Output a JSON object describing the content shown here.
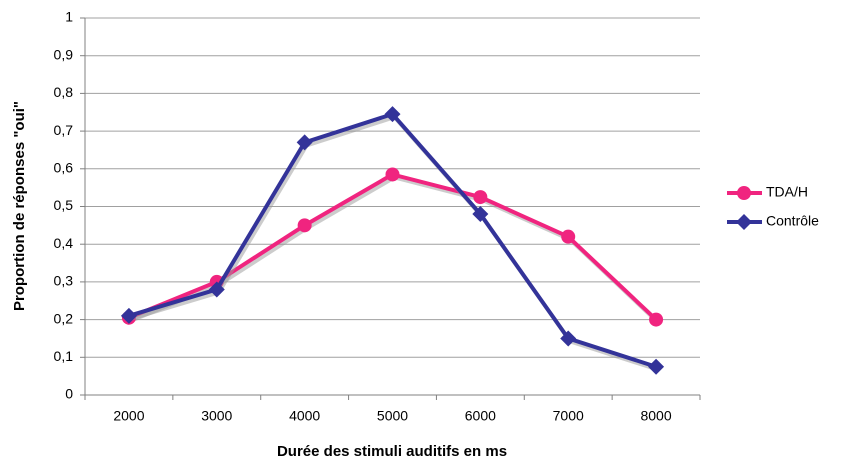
{
  "chart_data": {
    "type": "line",
    "x_label": "Durée des stimuli auditifs en ms",
    "y_label": "Proportion de réponses \"oui\"",
    "categories": [
      "2000",
      "3000",
      "4000",
      "5000",
      "6000",
      "7000",
      "8000"
    ],
    "series": [
      {
        "name": "TDA/H",
        "color": "#f0247f",
        "marker": "circle",
        "values": [
          0.205,
          0.3,
          0.45,
          0.585,
          0.525,
          0.42,
          0.2
        ]
      },
      {
        "name": "Contrôle",
        "color": "#333399",
        "marker": "diamond",
        "values": [
          0.21,
          0.28,
          0.67,
          0.745,
          0.48,
          0.15,
          0.075
        ]
      }
    ],
    "ylim": [
      0,
      1
    ],
    "yticks": [
      0,
      {
        "value": 0.1,
        "label": "0,1"
      },
      {
        "value": 0.2,
        "label": "0,2"
      },
      {
        "value": 0.3,
        "label": "0,3"
      },
      {
        "value": 0.4,
        "label": "0,4"
      },
      {
        "value": 0.5,
        "label": "0,5"
      },
      {
        "value": 0.6,
        "label": "0,6"
      },
      {
        "value": 0.7,
        "label": "0,7"
      },
      {
        "value": 0.8,
        "label": "0,8"
      },
      {
        "value": 0.9,
        "label": "0,9"
      },
      1
    ],
    "grid": true,
    "legend": "right"
  }
}
